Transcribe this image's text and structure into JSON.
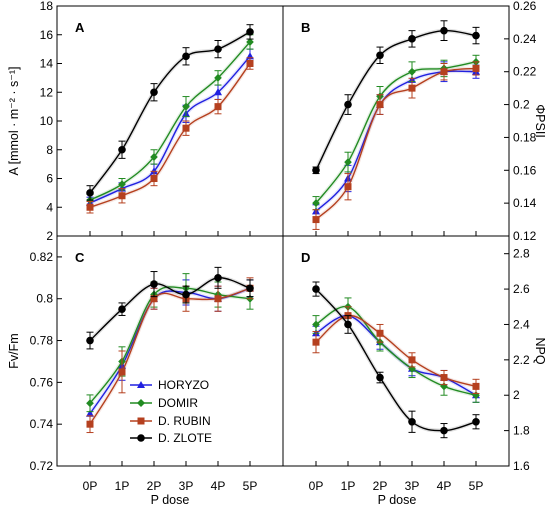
{
  "chart_data": {
    "type": "line",
    "categories": [
      "0P",
      "1P",
      "2P",
      "3P",
      "4P",
      "5P"
    ],
    "xlabel": "P dose",
    "legend": {
      "placement": "bottom-left of panel C",
      "entries": [
        {
          "name": "HORYZO",
          "color": "#2020e0",
          "marker": "triangle"
        },
        {
          "name": "DOMIR",
          "color": "#228b22",
          "marker": "diamond"
        },
        {
          "name": "D. RUBIN",
          "color": "#b5401f",
          "marker": "square"
        },
        {
          "name": "D. ZLOTE",
          "color": "#000000",
          "marker": "circle"
        }
      ]
    },
    "panels": [
      {
        "id": "A",
        "ylabel": "A [mmol · m⁻² · s⁻¹]",
        "ylim": [
          2,
          18
        ],
        "yticks": [
          "2",
          "4",
          "6",
          "8",
          "10",
          "12",
          "14",
          "16",
          "18"
        ],
        "series": [
          {
            "name": "HORYZO",
            "values": [
              4.3,
              5.3,
              6.5,
              10.5,
              12.0,
              14.5
            ],
            "err": [
              0.4,
              0.4,
              0.5,
              0.6,
              0.5,
              0.5
            ]
          },
          {
            "name": "DOMIR",
            "values": [
              4.5,
              5.6,
              7.5,
              11.0,
              13.0,
              15.5
            ],
            "err": [
              0.4,
              0.4,
              0.5,
              0.7,
              0.5,
              0.5
            ]
          },
          {
            "name": "D. RUBIN",
            "values": [
              4.0,
              4.8,
              6.0,
              9.5,
              11.0,
              14.0
            ],
            "err": [
              0.4,
              0.5,
              0.5,
              0.5,
              0.5,
              0.4
            ]
          },
          {
            "name": "D. ZLOTE",
            "values": [
              5.0,
              8.0,
              12.0,
              14.5,
              15.0,
              16.2
            ],
            "err": [
              0.5,
              0.6,
              0.6,
              0.6,
              0.6,
              0.5
            ]
          }
        ]
      },
      {
        "id": "B",
        "ylabel": "ΦPSII",
        "ylim": [
          0.12,
          0.26
        ],
        "yticks": [
          "0.12",
          "0.14",
          "0.16",
          "0.18",
          "0.2",
          "0.22",
          "0.24",
          "0.26"
        ],
        "series": [
          {
            "name": "HORYZO",
            "values": [
              0.135,
              0.155,
              0.2,
              0.215,
              0.22,
              0.22
            ],
            "err": [
              0.004,
              0.008,
              0.006,
              0.005,
              0.006,
              0.004
            ]
          },
          {
            "name": "DOMIR",
            "values": [
              0.14,
              0.165,
              0.205,
              0.22,
              0.222,
              0.226
            ],
            "err": [
              0.004,
              0.006,
              0.006,
              0.006,
              0.005,
              0.004
            ]
          },
          {
            "name": "D. RUBIN",
            "values": [
              0.13,
              0.15,
              0.2,
              0.21,
              0.22,
              0.222
            ],
            "err": [
              0.006,
              0.008,
              0.006,
              0.006,
              0.005,
              0.004
            ]
          },
          {
            "name": "D. ZLOTE",
            "values": [
              0.16,
              0.2,
              0.23,
              0.24,
              0.245,
              0.242
            ],
            "err": [
              0.002,
              0.006,
              0.005,
              0.005,
              0.006,
              0.005
            ]
          }
        ]
      },
      {
        "id": "C",
        "ylabel": "Fv/Fm",
        "ylim": [
          0.72,
          0.83
        ],
        "yticks": [
          "0.72",
          "0.74",
          "0.76",
          "0.78",
          "0.8",
          "0.82"
        ],
        "series": [
          {
            "name": "HORYZO",
            "values": [
              0.745,
              0.768,
              0.8,
              0.803,
              0.8,
              0.805
            ],
            "err": [
              0.005,
              0.007,
              0.005,
              0.006,
              0.006,
              0.004
            ]
          },
          {
            "name": "DOMIR",
            "values": [
              0.75,
              0.77,
              0.802,
              0.805,
              0.802,
              0.8
            ],
            "err": [
              0.004,
              0.007,
              0.006,
              0.007,
              0.006,
              0.005
            ]
          },
          {
            "name": "D. RUBIN",
            "values": [
              0.74,
              0.765,
              0.8,
              0.8,
              0.8,
              0.805
            ],
            "err": [
              0.004,
              0.01,
              0.005,
              0.006,
              0.006,
              0.005
            ]
          },
          {
            "name": "D. ZLOTE",
            "values": [
              0.78,
              0.795,
              0.807,
              0.802,
              0.81,
              0.805
            ],
            "err": [
              0.004,
              0.003,
              0.006,
              0.004,
              0.005,
              0.004
            ]
          }
        ]
      },
      {
        "id": "D",
        "ylabel": "NPQ",
        "ylim": [
          1.6,
          2.9
        ],
        "yticks": [
          "1.6",
          "1.8",
          "2",
          "2.2",
          "2.4",
          "2.6",
          "2.8"
        ],
        "series": [
          {
            "name": "HORYZO",
            "values": [
              2.35,
              2.45,
              2.3,
              2.15,
              2.1,
              2.0
            ],
            "err": [
              0.04,
              0.05,
              0.04,
              0.04,
              0.04,
              0.04
            ]
          },
          {
            "name": "DOMIR",
            "values": [
              2.4,
              2.5,
              2.3,
              2.15,
              2.05,
              2.0
            ],
            "err": [
              0.05,
              0.05,
              0.05,
              0.05,
              0.05,
              0.04
            ]
          },
          {
            "name": "D. RUBIN",
            "values": [
              2.3,
              2.45,
              2.35,
              2.2,
              2.1,
              2.05
            ],
            "err": [
              0.06,
              0.05,
              0.05,
              0.04,
              0.04,
              0.04
            ]
          },
          {
            "name": "D. ZLOTE",
            "values": [
              2.6,
              2.4,
              2.1,
              1.85,
              1.8,
              1.85
            ],
            "err": [
              0.04,
              0.05,
              0.03,
              0.06,
              0.04,
              0.04
            ]
          }
        ]
      }
    ]
  }
}
